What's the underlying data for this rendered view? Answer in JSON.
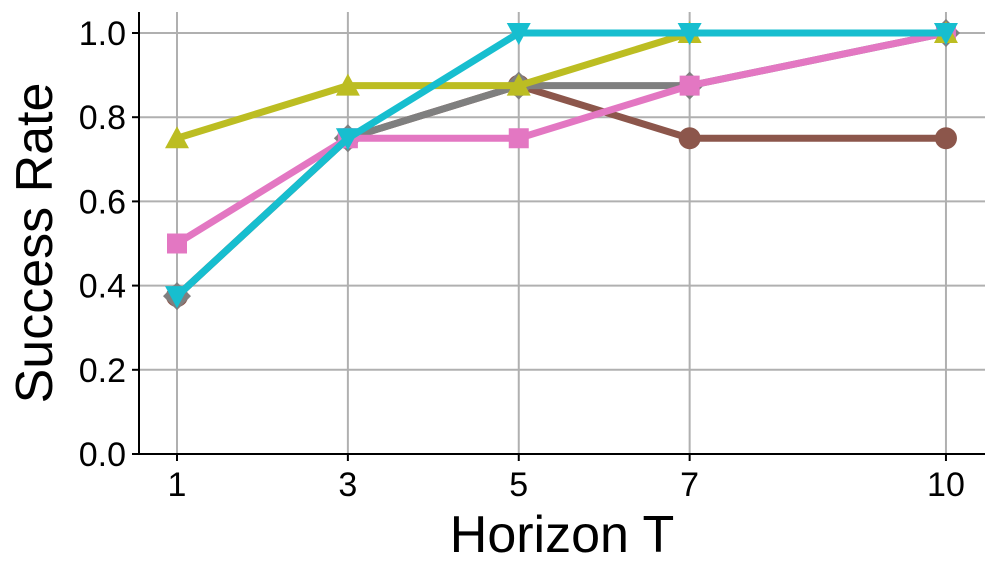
{
  "chart_data": {
    "type": "line",
    "title": "",
    "xlabel": "Horizon T",
    "ylabel": "Success Rate",
    "x": [
      1,
      3,
      5,
      7,
      10
    ],
    "xticks": [
      "1",
      "3",
      "5",
      "7",
      "10"
    ],
    "yticks": [
      "0.0",
      "0.2",
      "0.4",
      "0.6",
      "0.8",
      "1.0"
    ],
    "xlim": [
      0.55,
      10.45
    ],
    "ylim": [
      0.0,
      1.05
    ],
    "grid": true,
    "legend": null,
    "series": [
      {
        "name": "brown",
        "color": "#8c564b",
        "marker": "circle",
        "values": [
          0.375,
          0.75,
          0.875,
          0.75,
          0.75
        ]
      },
      {
        "name": "gray",
        "color": "#7f7f7f",
        "marker": "diamond",
        "values": [
          0.375,
          0.75,
          0.875,
          0.875,
          1.0
        ]
      },
      {
        "name": "pink",
        "color": "#e377c2",
        "marker": "square",
        "values": [
          0.5,
          0.75,
          0.75,
          0.875,
          1.0
        ]
      },
      {
        "name": "olive",
        "color": "#bcbd22",
        "marker": "triangle-up",
        "values": [
          0.75,
          0.875,
          0.875,
          1.0,
          1.0
        ]
      },
      {
        "name": "cyan",
        "color": "#17becf",
        "marker": "triangle-down",
        "values": [
          0.375,
          0.75,
          1.0,
          1.0,
          1.0
        ]
      }
    ]
  }
}
